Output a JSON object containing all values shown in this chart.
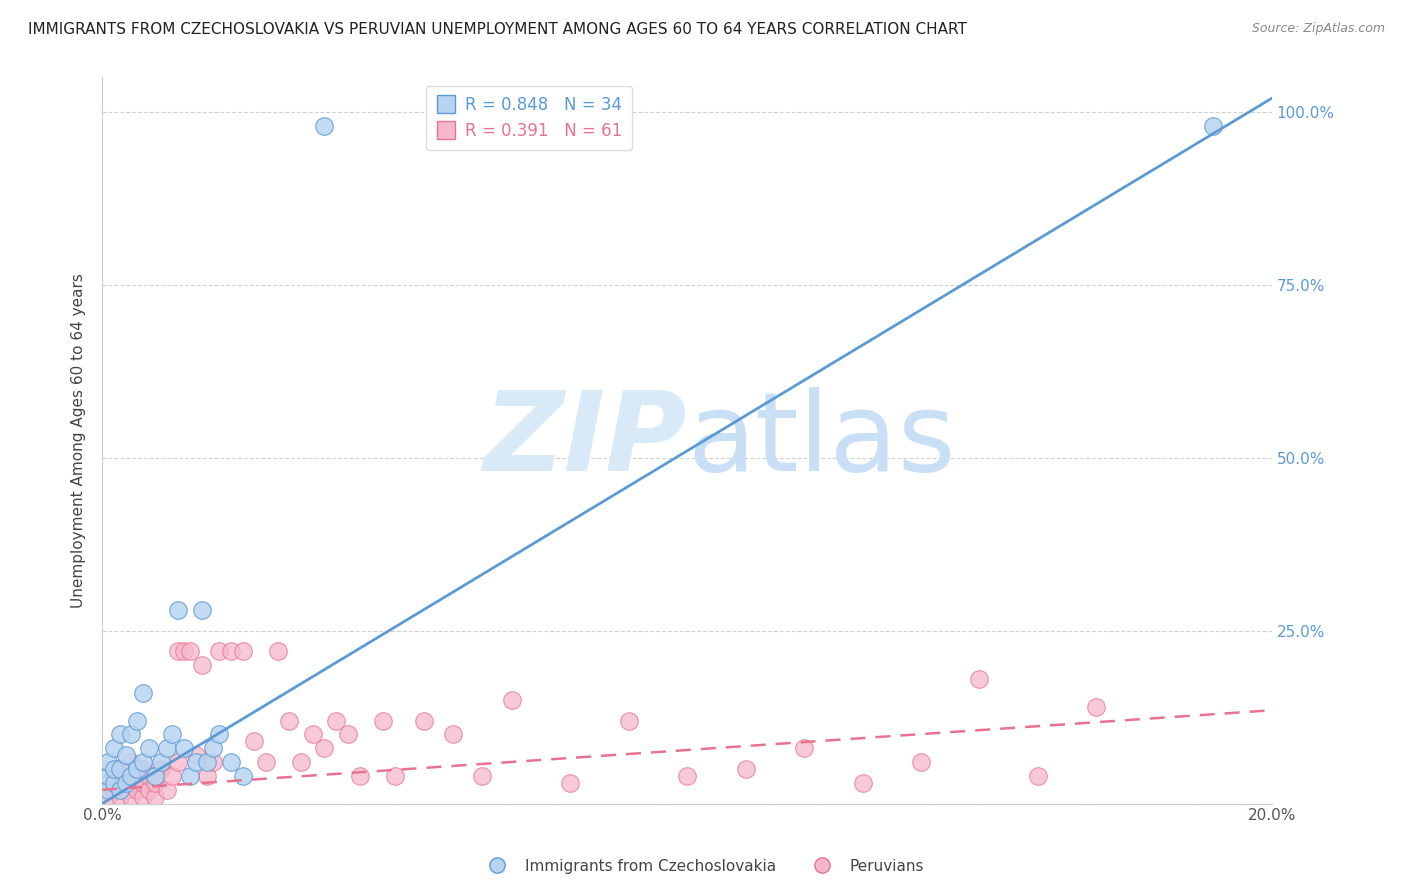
{
  "title": "IMMIGRANTS FROM CZECHOSLOVAKIA VS PERUVIAN UNEMPLOYMENT AMONG AGES 60 TO 64 YEARS CORRELATION CHART",
  "source": "Source: ZipAtlas.com",
  "ylabel": "Unemployment Among Ages 60 to 64 years",
  "blue_R": 0.848,
  "blue_N": 34,
  "pink_R": 0.391,
  "pink_N": 61,
  "blue_color": "#b8d4f0",
  "blue_line_color": "#5b9bd5",
  "pink_color": "#f5b8cb",
  "pink_line_color": "#e8728f",
  "blue_scatter_x": [
    0.001,
    0.001,
    0.001,
    0.002,
    0.002,
    0.002,
    0.003,
    0.003,
    0.003,
    0.004,
    0.004,
    0.005,
    0.005,
    0.006,
    0.006,
    0.007,
    0.007,
    0.008,
    0.009,
    0.01,
    0.011,
    0.012,
    0.013,
    0.014,
    0.015,
    0.016,
    0.017,
    0.018,
    0.019,
    0.02,
    0.022,
    0.024,
    0.038,
    0.19
  ],
  "blue_scatter_y": [
    0.02,
    0.04,
    0.06,
    0.03,
    0.05,
    0.08,
    0.02,
    0.05,
    0.1,
    0.03,
    0.07,
    0.04,
    0.1,
    0.05,
    0.12,
    0.06,
    0.16,
    0.08,
    0.04,
    0.06,
    0.08,
    0.1,
    0.28,
    0.08,
    0.04,
    0.06,
    0.28,
    0.06,
    0.08,
    0.1,
    0.06,
    0.04,
    0.98,
    0.98
  ],
  "pink_scatter_x": [
    0.001,
    0.001,
    0.002,
    0.002,
    0.003,
    0.003,
    0.003,
    0.004,
    0.004,
    0.005,
    0.005,
    0.005,
    0.006,
    0.006,
    0.007,
    0.007,
    0.007,
    0.008,
    0.008,
    0.009,
    0.009,
    0.01,
    0.011,
    0.012,
    0.013,
    0.013,
    0.014,
    0.015,
    0.016,
    0.017,
    0.018,
    0.019,
    0.02,
    0.022,
    0.024,
    0.026,
    0.028,
    0.03,
    0.032,
    0.034,
    0.036,
    0.038,
    0.04,
    0.042,
    0.044,
    0.048,
    0.05,
    0.055,
    0.06,
    0.065,
    0.07,
    0.08,
    0.09,
    0.1,
    0.11,
    0.12,
    0.13,
    0.14,
    0.15,
    0.16,
    0.17
  ],
  "pink_scatter_y": [
    0.01,
    0.03,
    0.02,
    0.04,
    0.01,
    0.03,
    0.05,
    0.02,
    0.04,
    0.01,
    0.03,
    0.06,
    0.02,
    0.04,
    0.01,
    0.03,
    0.05,
    0.02,
    0.04,
    0.01,
    0.03,
    0.05,
    0.02,
    0.04,
    0.22,
    0.06,
    0.22,
    0.22,
    0.07,
    0.2,
    0.04,
    0.06,
    0.22,
    0.22,
    0.22,
    0.09,
    0.06,
    0.22,
    0.12,
    0.06,
    0.1,
    0.08,
    0.12,
    0.1,
    0.04,
    0.12,
    0.04,
    0.12,
    0.1,
    0.04,
    0.15,
    0.03,
    0.12,
    0.04,
    0.05,
    0.08,
    0.03,
    0.06,
    0.18,
    0.04,
    0.14
  ],
  "blue_line_x": [
    0.0,
    0.2
  ],
  "blue_line_y": [
    0.0,
    1.02
  ],
  "pink_line_x": [
    0.0,
    0.2
  ],
  "pink_line_y": [
    0.02,
    0.135
  ],
  "xlim": [
    0.0,
    0.2
  ],
  "ylim": [
    0.0,
    1.05
  ],
  "background_color": "#ffffff",
  "watermark_zip": "ZIP",
  "watermark_atlas": "atlas",
  "watermark_color": "#d8eaf8",
  "title_fontsize": 11,
  "legend_label_blue": "Immigrants from Czechoslovakia",
  "legend_label_pink": "Peruvians"
}
